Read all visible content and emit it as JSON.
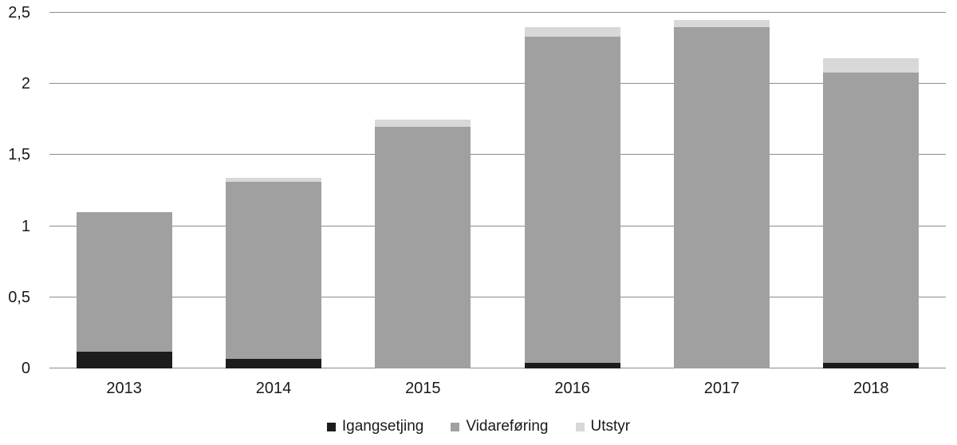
{
  "chart_data": {
    "type": "bar",
    "stacked": true,
    "title": "",
    "xlabel": "",
    "ylabel": "",
    "categories": [
      "2013",
      "2014",
      "2015",
      "2016",
      "2017",
      "2018"
    ],
    "series": [
      {
        "name": "Igangsetjing",
        "color": "#1c1c1c",
        "values": [
          0.12,
          0.07,
          0,
          0.04,
          0,
          0.04
        ]
      },
      {
        "name": "Vidareføring",
        "color": "#a0a0a0",
        "values": [
          0.98,
          1.24,
          1.7,
          2.29,
          2.4,
          2.04
        ]
      },
      {
        "name": "Utstyr",
        "color": "#d8d8d8",
        "values": [
          0,
          0.03,
          0.05,
          0.07,
          0.05,
          0.1
        ]
      }
    ],
    "totals": [
      1.1,
      1.34,
      1.75,
      2.4,
      2.45,
      2.18
    ],
    "ylim": [
      0,
      2.5
    ],
    "yticks": [
      "0",
      "0,5",
      "1",
      "1,5",
      "2",
      "2,5"
    ],
    "ytick_values": [
      0,
      0.5,
      1,
      1.5,
      2,
      2.5
    ],
    "grid": true,
    "legend_position": "bottom",
    "colors": {
      "gridline": "#8c8c8c",
      "text": "#1a1a1a",
      "background": "#ffffff"
    }
  }
}
